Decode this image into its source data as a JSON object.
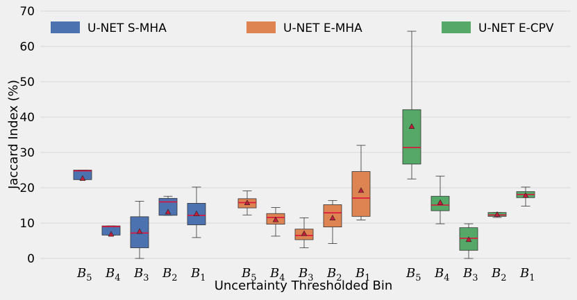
{
  "chart_data": {
    "type": "boxplot",
    "title": "",
    "xlabel": "Uncertainty Thresholded Bin",
    "ylabel": "Jaccard Index (%)",
    "ylim": [
      0,
      70
    ],
    "yticks": [
      0,
      10,
      20,
      30,
      40,
      50,
      60,
      70
    ],
    "grid": true,
    "legend_position": "top",
    "categories": [
      {
        "base": "B",
        "sub": "5"
      },
      {
        "base": "B",
        "sub": "4"
      },
      {
        "base": "B",
        "sub": "3"
      },
      {
        "base": "B",
        "sub": "2"
      },
      {
        "base": "B",
        "sub": "1"
      }
    ],
    "series": [
      {
        "name": "U-NET S-MHA",
        "color": "#4c72b0",
        "boxes": [
          {
            "whislo": 22.3,
            "q1": 22.3,
            "med": 24.8,
            "q3": 25.0,
            "whishi": 25.0,
            "mean": 22.6
          },
          {
            "whislo": 6.6,
            "q1": 6.6,
            "med": 9.0,
            "q3": 9.2,
            "whishi": 9.2,
            "mean": 6.8
          },
          {
            "whislo": 0.0,
            "q1": 3.0,
            "med": 7.2,
            "q3": 11.8,
            "whishi": 16.2,
            "mean": 7.6
          },
          {
            "whislo": 12.2,
            "q1": 12.2,
            "med": 16.0,
            "q3": 17.0,
            "whishi": 17.6,
            "mean": 13.1
          },
          {
            "whislo": 5.9,
            "q1": 9.5,
            "med": 12.2,
            "q3": 15.6,
            "whishi": 20.2,
            "mean": 12.6
          }
        ]
      },
      {
        "name": "U-NET E-MHA",
        "color": "#dd8452",
        "boxes": [
          {
            "whislo": 12.3,
            "q1": 14.3,
            "med": 15.8,
            "q3": 16.9,
            "whishi": 19.1,
            "mean": 15.7
          },
          {
            "whislo": 6.3,
            "q1": 9.7,
            "med": 11.6,
            "q3": 12.7,
            "whishi": 14.4,
            "mean": 10.9
          },
          {
            "whislo": 3.0,
            "q1": 5.3,
            "med": 6.5,
            "q3": 8.3,
            "whishi": 11.5,
            "mean": 7.0
          },
          {
            "whislo": 4.2,
            "q1": 8.9,
            "med": 12.9,
            "q3": 15.2,
            "whishi": 16.4,
            "mean": 11.4
          },
          {
            "whislo": 10.9,
            "q1": 11.9,
            "med": 17.1,
            "q3": 24.6,
            "whishi": 32.0,
            "mean": 19.2
          }
        ]
      },
      {
        "name": "U-NET E-CPV",
        "color": "#55a868",
        "boxes": [
          {
            "whislo": 22.5,
            "q1": 26.7,
            "med": 31.4,
            "q3": 42.1,
            "whishi": 64.3,
            "mean": 37.3
          },
          {
            "whislo": 9.8,
            "q1": 13.5,
            "med": 15.1,
            "q3": 17.6,
            "whishi": 23.3,
            "mean": 15.8
          },
          {
            "whislo": 0.0,
            "q1": 2.3,
            "med": 5.7,
            "q3": 8.7,
            "whishi": 9.8,
            "mean": 5.3
          },
          {
            "whislo": 11.6,
            "q1": 11.9,
            "med": 12.3,
            "q3": 13.0,
            "whishi": 13.0,
            "mean": 12.4
          },
          {
            "whislo": 14.8,
            "q1": 17.2,
            "med": 18.1,
            "q3": 18.9,
            "whishi": 20.2,
            "mean": 17.8
          }
        ]
      }
    ],
    "median_color": "#dc143c",
    "mean_marker_color": "#c41e3a"
  }
}
